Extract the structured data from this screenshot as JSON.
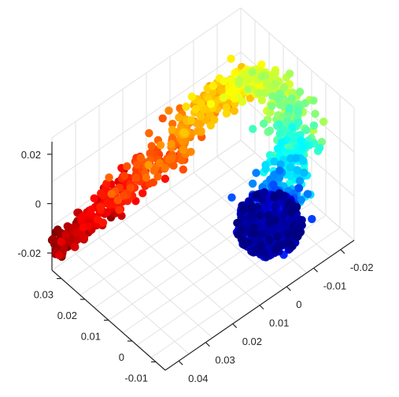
{
  "chart_data": {
    "type": "scatter",
    "title": "",
    "xlabel": "",
    "ylabel": "",
    "zlabel": "",
    "view": "3d",
    "grid": true,
    "colormap": "jet",
    "colorscale": "jet colormap: dark red at the far end of the left arm through orange and yellow to green, cyan and dark blue at the bottom of the right arm",
    "x_axis": {
      "ticks": [
        -0.01,
        0,
        0.01,
        0.02,
        0.03
      ],
      "labels": [
        "-0.01",
        "0",
        "0.01",
        "0.02",
        "0.03"
      ]
    },
    "y_axis": {
      "ticks": [
        -0.02,
        -0.01,
        0,
        0.01,
        0.02,
        0.03,
        0.04
      ],
      "labels": [
        "-0.02",
        "-0.01",
        "0",
        "0.01",
        "0.02",
        "0.03",
        "0.04"
      ]
    },
    "z_axis": {
      "ticks": [
        -0.02,
        0,
        0.02
      ],
      "labels": [
        "-0.02",
        "0",
        "0.02"
      ]
    },
    "clusters": [
      {
        "region": "left arm, lower end",
        "color_value": 0.97,
        "x": 0.032,
        "y": 0.035,
        "z": -0.022
      },
      {
        "region": "left arm, middle",
        "color_value": 0.85,
        "x": 0.025,
        "y": 0.02,
        "z": -0.008
      },
      {
        "region": "left arm, upper",
        "color_value": 0.75,
        "x": 0.017,
        "y": 0.004,
        "z": 0.006
      },
      {
        "region": "top bend",
        "color_value": 0.68,
        "x": 0.01,
        "y": -0.01,
        "z": 0.018
      },
      {
        "region": "right arm, upper",
        "color_value": 0.48,
        "x": -0.003,
        "y": -0.012,
        "z": 0.01
      },
      {
        "region": "right arm, middle",
        "color_value": 0.3,
        "x": -0.007,
        "y": -0.009,
        "z": -0.005
      },
      {
        "region": "right arm, lower end",
        "color_value": 0.1,
        "x": -0.005,
        "y": 0.0,
        "z": -0.02
      }
    ]
  }
}
